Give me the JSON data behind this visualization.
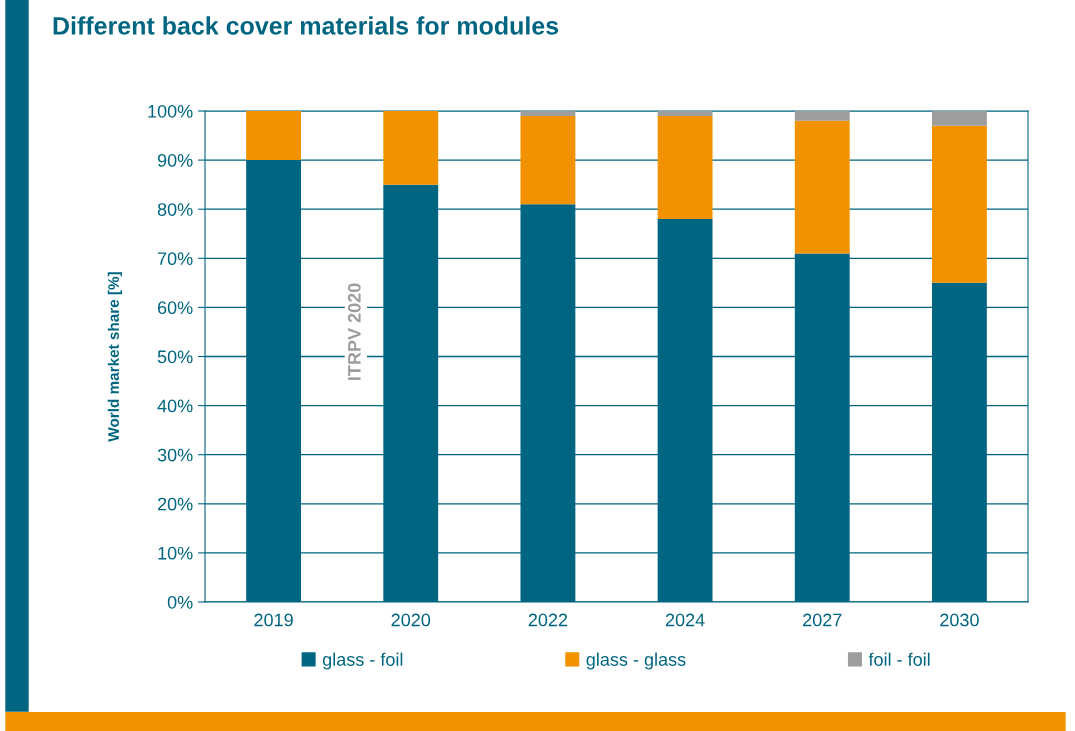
{
  "chart_data": {
    "type": "bar",
    "title": "Different back cover materials for modules",
    "ylabel": "World market share [%]",
    "categories": [
      "2019",
      "2020",
      "2022",
      "2024",
      "2027",
      "2030"
    ],
    "series": [
      {
        "name": "glass - foil",
        "color": "#006580",
        "values": [
          90,
          85,
          81,
          78,
          71,
          65
        ]
      },
      {
        "name": "glass - glass",
        "color": "#f39200",
        "values": [
          10,
          15,
          18,
          21,
          27,
          32
        ]
      },
      {
        "name": "foil - foil",
        "color": "#9d9d9c",
        "values": [
          0,
          0,
          1,
          1,
          2,
          3
        ]
      }
    ],
    "stacked": true,
    "ylim": [
      0,
      100
    ],
    "yticks": [
      {
        "value": 0,
        "label": "0%"
      },
      {
        "value": 10,
        "label": "10%"
      },
      {
        "value": 20,
        "label": "20%"
      },
      {
        "value": 30,
        "label": "30%"
      },
      {
        "value": 40,
        "label": "40%"
      },
      {
        "value": 50,
        "label": "50%"
      },
      {
        "value": 60,
        "label": "60%"
      },
      {
        "value": 70,
        "label": "70%"
      },
      {
        "value": 80,
        "label": "80%"
      },
      {
        "value": 90,
        "label": "90%"
      },
      {
        "value": 100,
        "label": "100%"
      }
    ],
    "grid": "y",
    "legend": "bottom",
    "annotations": [
      "ITRPV 2020"
    ]
  }
}
